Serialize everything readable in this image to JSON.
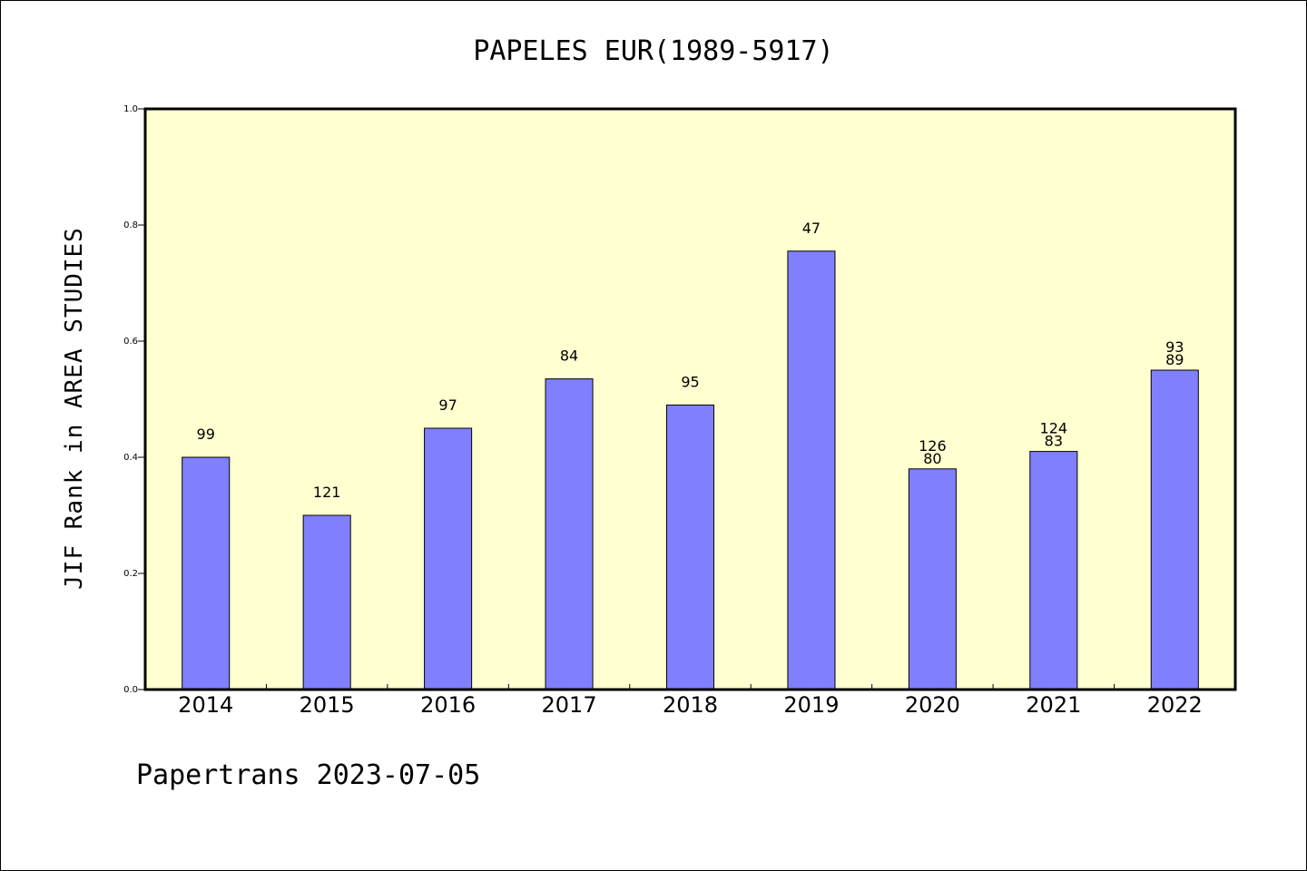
{
  "chart_data": {
    "type": "bar",
    "title": "PAPELES EUR(1989-5917)",
    "xlabel": "",
    "ylabel": "JIF Rank in AREA STUDIES",
    "categories": [
      "2014",
      "2015",
      "2016",
      "2017",
      "2018",
      "2019",
      "2020",
      "2021",
      "2022"
    ],
    "values": [
      0.4,
      0.3,
      0.45,
      0.535,
      0.49,
      0.755,
      0.38,
      0.41,
      0.55
    ],
    "data_labels": [
      [
        "99"
      ],
      [
        "121"
      ],
      [
        "97"
      ],
      [
        "84"
      ],
      [
        "95"
      ],
      [
        "47"
      ],
      [
        "126",
        "80"
      ],
      [
        "124",
        "83"
      ],
      [
        "93",
        "89"
      ]
    ],
    "ylim": [
      0,
      1.0
    ],
    "yticks": [
      "0.0",
      "0.2",
      "0.4",
      "0.6",
      "0.8",
      "1.0"
    ],
    "grid": false,
    "colors": {
      "bar": "#8080ff",
      "plot_background": "#ffffd0",
      "axis": "#000000"
    }
  },
  "footer": "Papertrans 2023-07-05"
}
